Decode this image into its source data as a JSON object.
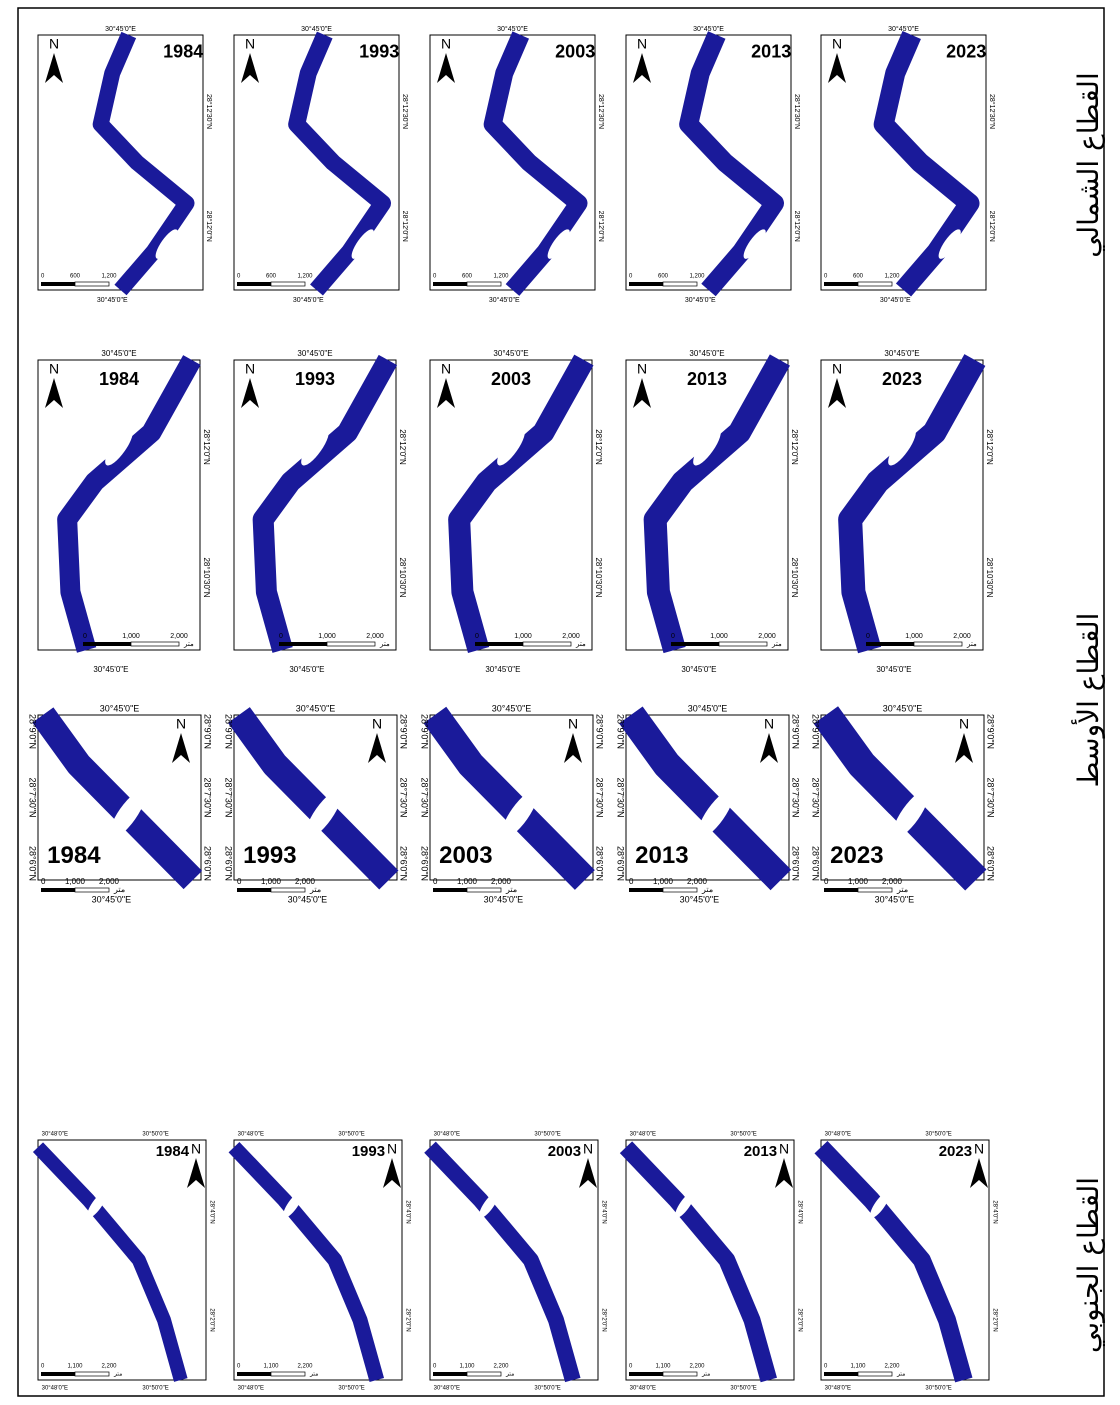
{
  "rows": [
    {
      "label": "القطاع الشمالي",
      "years": [
        "1984",
        "1993",
        "2003",
        "2013",
        "2023"
      ],
      "north": "N",
      "top_coords": [
        "30°45'0\"E"
      ],
      "bottom_coords": [
        "30°45'0\"E"
      ],
      "lat_coords": [
        "28°12'30\"N",
        "28°12'0\"N"
      ],
      "scale_labels": [
        "0",
        "600",
        "1,200"
      ]
    },
    {
      "label": "القطاع الأوسط",
      "years": [
        "1984",
        "1993",
        "2003",
        "2013",
        "2023"
      ],
      "north": "N",
      "top_coords": [
        "30°45'0\"E"
      ],
      "bottom_coords": [
        "30°45'0\"E"
      ],
      "lat_coords": [
        "28°12'0\"N",
        "28°10'30\"N"
      ],
      "scale_labels": [
        "0",
        "1,000",
        "2,000"
      ],
      "scale_unit": "متر"
    },
    {
      "years": [
        "1984",
        "1993",
        "2003",
        "2013",
        "2023"
      ],
      "north": "N",
      "top_coords": [
        "30°45'0\"E"
      ],
      "bottom_coords": [
        "30°45'0\"E"
      ],
      "lat_coords": [
        "28°9'0\"N",
        "28°7'30\"N",
        "28°6'0\"N"
      ],
      "scale_labels": [
        "0",
        "1,000",
        "2,000"
      ],
      "scale_unit": "متر"
    },
    {
      "label": "القطاع الجنوبي",
      "years": [
        "1984",
        "1993",
        "2003",
        "2013",
        "2023"
      ],
      "north": "N",
      "top_coords": [
        "30°48'0\"E",
        "30°50'0\"E"
      ],
      "bottom_coords": [
        "30°48'0\"E",
        "30°50'0\"E"
      ],
      "lat_coords": [
        "28°4'0\"N",
        "28°2'0\"N"
      ],
      "scale_labels": [
        "0",
        "1,100",
        "2,200"
      ],
      "scale_unit": "متر"
    }
  ]
}
